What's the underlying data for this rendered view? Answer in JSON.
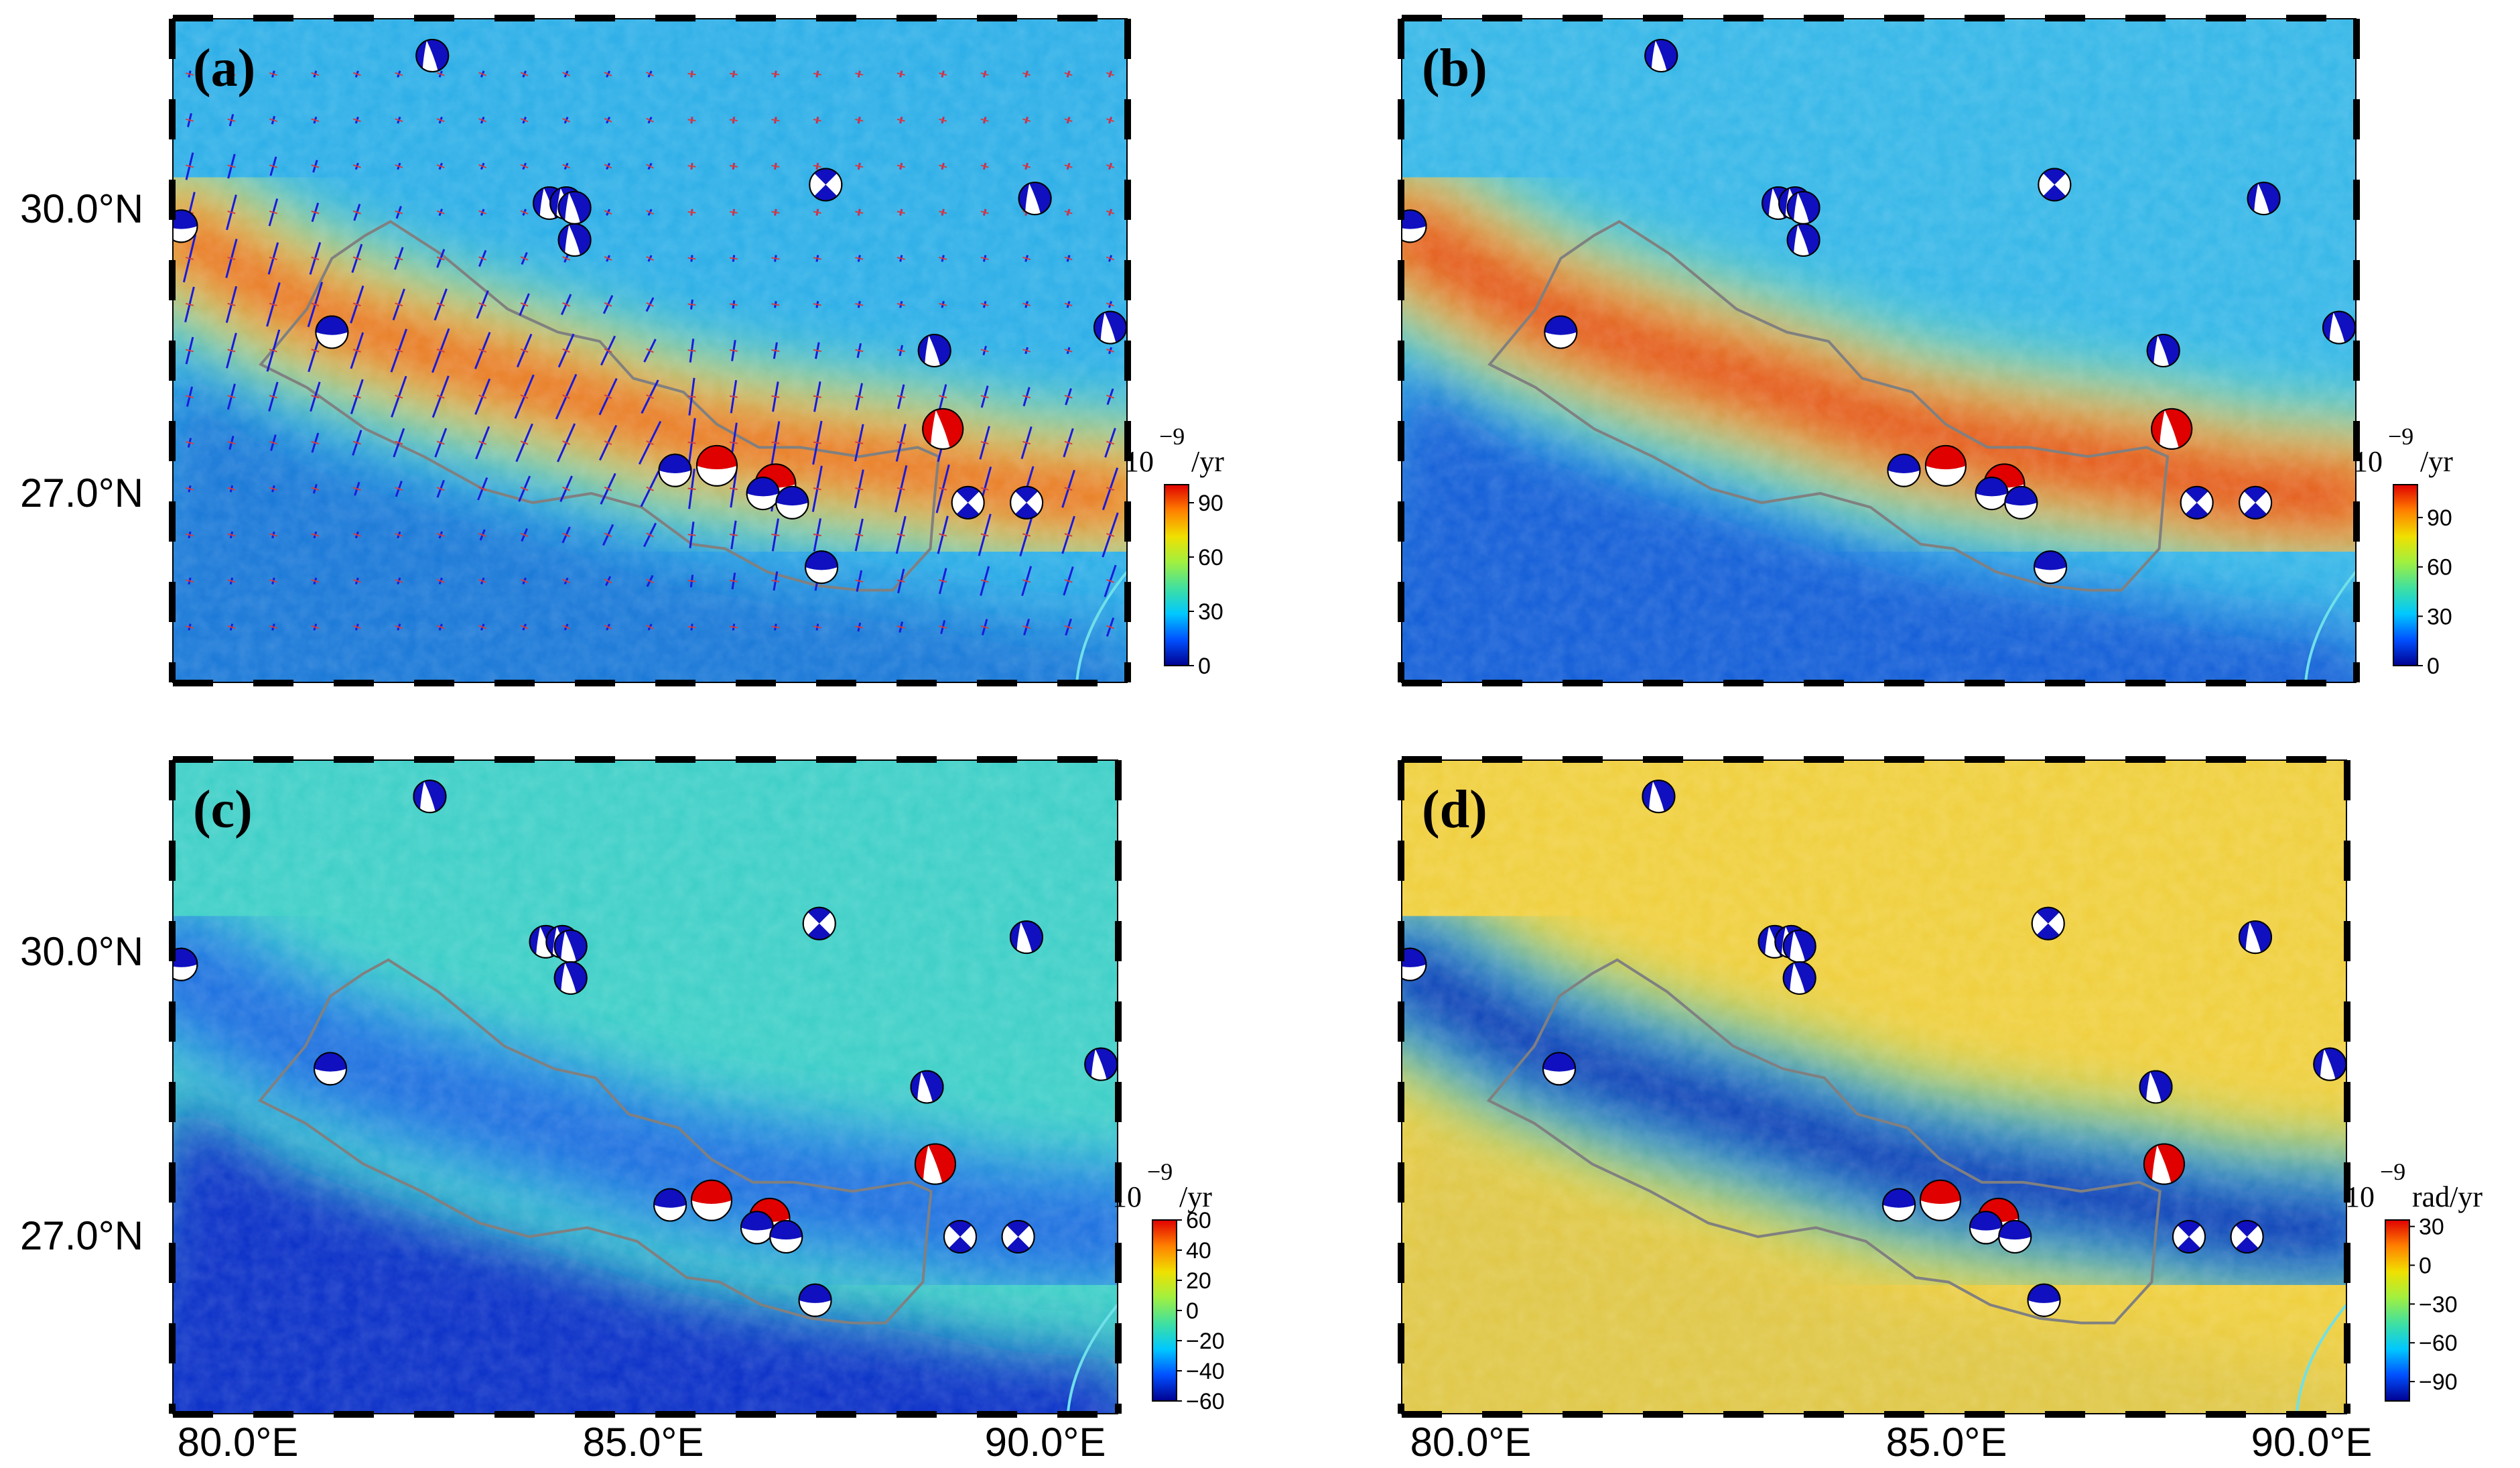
{
  "figure": {
    "lat_labels": [
      "30.0°N",
      "27.0°N"
    ],
    "lon_labels": [
      "80.0°E",
      "85.0°E",
      "90.0°E"
    ]
  },
  "panels": [
    {
      "id": "a",
      "label": "(a)",
      "field": "max_shear",
      "colorbar": {
        "unit_base": "10",
        "unit_exp": "−9",
        "unit_suffix": "/yr",
        "ticks": [
          "90",
          "60",
          "30",
          "0"
        ],
        "range": [
          0,
          100
        ],
        "colors": [
          "#000090",
          "#0050ff",
          "#00c8ff",
          "#40e0a0",
          "#a0f040",
          "#f0e000",
          "#ff8000",
          "#e00000"
        ]
      }
    },
    {
      "id": "b",
      "label": "(b)",
      "field": "second_invariant",
      "colorbar": {
        "unit_base": "10",
        "unit_exp": "−9",
        "unit_suffix": "/yr",
        "ticks": [
          "90",
          "60",
          "30",
          "0"
        ],
        "range": [
          0,
          110
        ],
        "colors": [
          "#000090",
          "#0050ff",
          "#00c8ff",
          "#40e0a0",
          "#a0f040",
          "#f0e000",
          "#ff8000",
          "#e00000"
        ]
      }
    },
    {
      "id": "c",
      "label": "(c)",
      "field": "dilatation",
      "colorbar": {
        "unit_base": "10",
        "unit_exp": "−9",
        "unit_suffix": "/yr",
        "ticks": [
          "60",
          "40",
          "20",
          "0",
          "−20",
          "−40",
          "−60"
        ],
        "range": [
          -60,
          60
        ],
        "colors": [
          "#000090",
          "#0050ff",
          "#00c8ff",
          "#40e0a0",
          "#a0f040",
          "#f0e000",
          "#ff8000",
          "#e00000"
        ]
      }
    },
    {
      "id": "d",
      "label": "(d)",
      "field": "rotation",
      "colorbar": {
        "unit_base": "10",
        "unit_exp": "−9",
        "unit_suffix": "rad/yr",
        "ticks": [
          "30",
          "0",
          "−30",
          "−60",
          "−90"
        ],
        "range": [
          -105,
          35
        ],
        "colors": [
          "#000090",
          "#0050ff",
          "#00c8ff",
          "#40e0a0",
          "#a0f040",
          "#f0e000",
          "#ff8000",
          "#e00000"
        ]
      }
    }
  ],
  "map_extent": {
    "lon": [
      79.0,
      90.4
    ],
    "lat": [
      25.4,
      32.6
    ]
  },
  "focal_mechanisms": [
    {
      "lon": 79.1,
      "lat": 30.35,
      "type": "thrust",
      "color": "blue"
    },
    {
      "lon": 82.1,
      "lat": 32.2,
      "type": "normal",
      "color": "blue"
    },
    {
      "lon": 83.5,
      "lat": 30.6,
      "type": "normal",
      "color": "blue"
    },
    {
      "lon": 83.7,
      "lat": 30.6,
      "type": "normal",
      "color": "blue"
    },
    {
      "lon": 83.8,
      "lat": 30.55,
      "type": "normal",
      "color": "blue"
    },
    {
      "lon": 83.8,
      "lat": 30.2,
      "type": "normal",
      "color": "blue"
    },
    {
      "lon": 86.8,
      "lat": 30.8,
      "type": "strike",
      "color": "blue"
    },
    {
      "lon": 89.3,
      "lat": 30.65,
      "type": "normal",
      "color": "blue"
    },
    {
      "lon": 80.9,
      "lat": 29.2,
      "type": "thrust",
      "color": "blue"
    },
    {
      "lon": 88.1,
      "lat": 29.0,
      "type": "normal",
      "color": "blue"
    },
    {
      "lon": 90.2,
      "lat": 29.25,
      "type": "normal",
      "color": "blue"
    },
    {
      "lon": 88.2,
      "lat": 28.15,
      "type": "normal",
      "color": "red"
    },
    {
      "lon": 85.5,
      "lat": 27.75,
      "type": "thrust",
      "color": "red"
    },
    {
      "lon": 85.0,
      "lat": 27.7,
      "type": "thrust",
      "color": "blue"
    },
    {
      "lon": 86.2,
      "lat": 27.55,
      "type": "thrust",
      "color": "red"
    },
    {
      "lon": 86.05,
      "lat": 27.45,
      "type": "thrust",
      "color": "blue"
    },
    {
      "lon": 86.4,
      "lat": 27.35,
      "type": "thrust",
      "color": "blue"
    },
    {
      "lon": 88.5,
      "lat": 27.35,
      "type": "strike",
      "color": "blue"
    },
    {
      "lon": 89.2,
      "lat": 27.35,
      "type": "strike",
      "color": "blue"
    },
    {
      "lon": 86.75,
      "lat": 26.65,
      "type": "thrust",
      "color": "blue"
    }
  ],
  "colors": {
    "border": "#808080",
    "blue_beach": "#1010c0",
    "red_beach": "#e00000",
    "arrow": "#1a1adc"
  }
}
